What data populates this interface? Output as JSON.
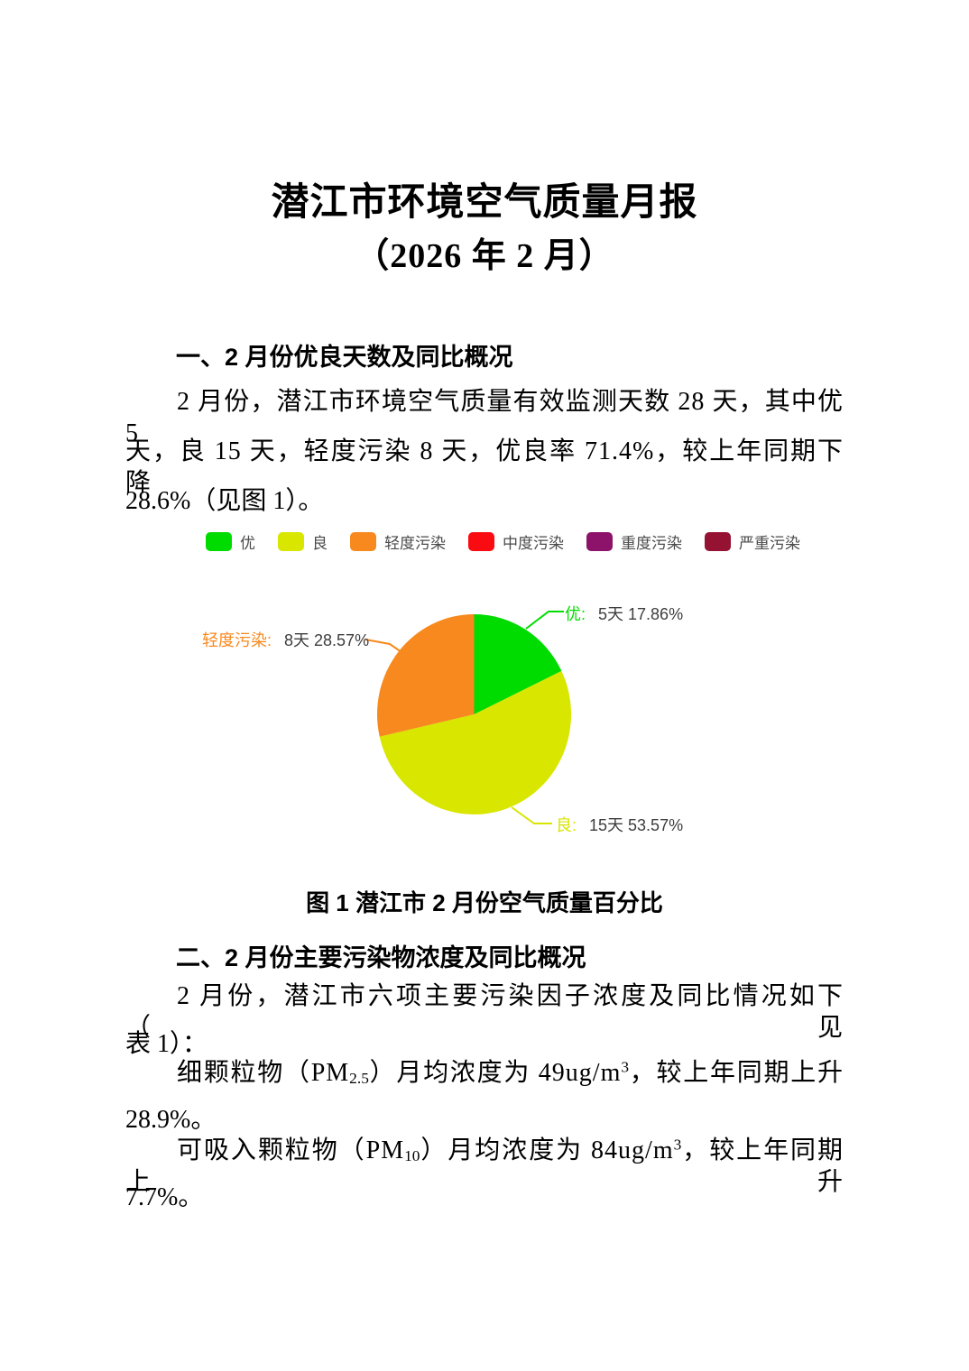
{
  "doc": {
    "title_line1": "潜江市环境空气质量月报",
    "title_line2": "（2026 年 2 月）"
  },
  "section1": {
    "heading": "一、2 月份优良天数及同比概况",
    "para_lines": [
      "2 月份，潜江市环境空气质量有效监测天数 28 天，其中优 5",
      "天，良 15 天，轻度污染 8 天，优良率 71.4%，较上年同期下降",
      "28.6%（见图 1）。"
    ]
  },
  "chart": {
    "legend": [
      {
        "label": "优",
        "color": "#00dc00"
      },
      {
        "label": "良",
        "color": "#d8e600"
      },
      {
        "label": "轻度污染",
        "color": "#f7891e"
      },
      {
        "label": "中度污染",
        "color": "#fa0b12"
      },
      {
        "label": "重度污染",
        "color": "#8c1369"
      },
      {
        "label": "严重污染",
        "color": "#951233"
      }
    ],
    "labels": {
      "excellent": {
        "name": "优:",
        "value": "5天 17.86%"
      },
      "good": {
        "name": "良:",
        "value": "15天 53.57%"
      },
      "mild": {
        "name": "轻度污染:",
        "value": "8天 28.57%"
      }
    },
    "caption": "图 1 潜江市 2 月份空气质量百分比"
  },
  "chart_data": {
    "type": "pie",
    "title": "图 1 潜江市 2 月份空气质量百分比",
    "total_days": 28,
    "unit": "天",
    "start_angle_deg": 0,
    "direction": "clockwise",
    "slices": [
      {
        "label": "优",
        "days": 5,
        "percent": 17.86,
        "color": "#00dc00"
      },
      {
        "label": "良",
        "days": 15,
        "percent": 53.57,
        "color": "#d8e600"
      },
      {
        "label": "轻度污染",
        "days": 8,
        "percent": 28.57,
        "color": "#f7891e"
      }
    ],
    "legend_entries": [
      "优",
      "良",
      "轻度污染",
      "中度污染",
      "重度污染",
      "严重污染"
    ]
  },
  "section2": {
    "heading": "二、2 月份主要污染物浓度及同比概况",
    "para_intro_lines": [
      "2 月份，潜江市六项主要污染因子浓度及同比情况如下（见",
      "表 1）："
    ],
    "pm25": {
      "line1": {
        "t1": "细颗粒物（PM",
        "sub": "2.5",
        "t2": "）月均浓度为 49ug/m",
        "sup": "3",
        "t3": "，较上年同期上升"
      },
      "line2": "28.9%。"
    },
    "pm10": {
      "line1": {
        "t1": "可吸入颗粒物（PM",
        "sub": "10",
        "t2": "）月均浓度为 84ug/m",
        "sup": "3",
        "t3": "，较上年同期上升"
      },
      "line2": "7.7%。"
    }
  }
}
